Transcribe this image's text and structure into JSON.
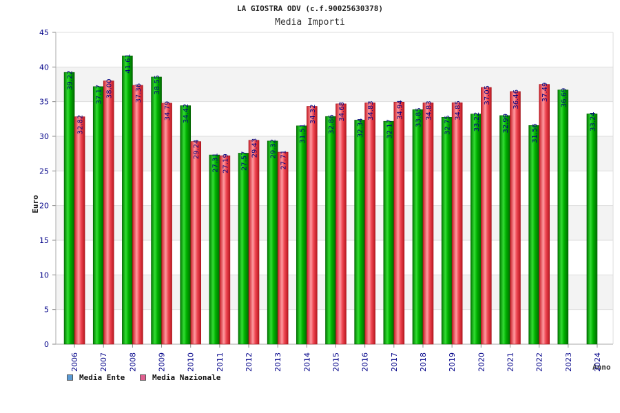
{
  "chart_data": {
    "type": "bar",
    "title": "LA GIOSTRA ODV (c.f.90025630378)",
    "subtitle": "Media Importi",
    "xlabel": "Anno",
    "ylabel": "Euro",
    "ylim": [
      0,
      45
    ],
    "yticks": [
      "0",
      "5",
      "10",
      "15",
      "20",
      "25",
      "30",
      "35",
      "40",
      "45"
    ],
    "grid": true,
    "legend_position": "bottom-left",
    "categories": [
      "2006",
      "2007",
      "2008",
      "2009",
      "2010",
      "2011",
      "2012",
      "2013",
      "2014",
      "2015",
      "2016",
      "2017",
      "2018",
      "2019",
      "2020",
      "2021",
      "2022",
      "2023",
      "2024"
    ],
    "series": [
      {
        "name": "Media Ente",
        "color": "#00aa00",
        "legend_color": "#5b9bd5",
        "values": [
          39.22,
          37.17,
          41.61,
          38.55,
          34.42,
          27.31,
          27.57,
          29.32,
          31.51,
          32.86,
          32.34,
          32.17,
          33.85,
          32.75,
          33.22,
          32.99,
          31.56,
          36.69,
          33.24
        ],
        "labels": [
          "39.22",
          "37.17",
          "41.61",
          "38.55",
          "34.42",
          "27.31",
          "27.57",
          "29.32",
          "31.51",
          "32.86",
          "32.34",
          "32.17",
          "33.85",
          "32.75",
          "33.22",
          "32.99",
          "31.56",
          "36.69",
          "33.24"
        ]
      },
      {
        "name": "Media Nazionale",
        "color": "#e8323c",
        "legend_color": "#e06090",
        "values": [
          32.82,
          38.0,
          37.36,
          34.79,
          29.24,
          27.19,
          29.43,
          27.71,
          34.32,
          34.68,
          34.83,
          34.94,
          34.83,
          34.85,
          37.05,
          36.46,
          37.49,
          null,
          null
        ],
        "labels": [
          "32.82",
          "38.00",
          "37.36",
          "34.79",
          "29.24",
          "27.19",
          "29.43",
          "27.71",
          "34.32",
          "34.68",
          "34.83",
          "34.94",
          "34.83",
          "34.85",
          "37.05",
          "36.46",
          "37.49",
          "",
          ""
        ]
      }
    ]
  }
}
